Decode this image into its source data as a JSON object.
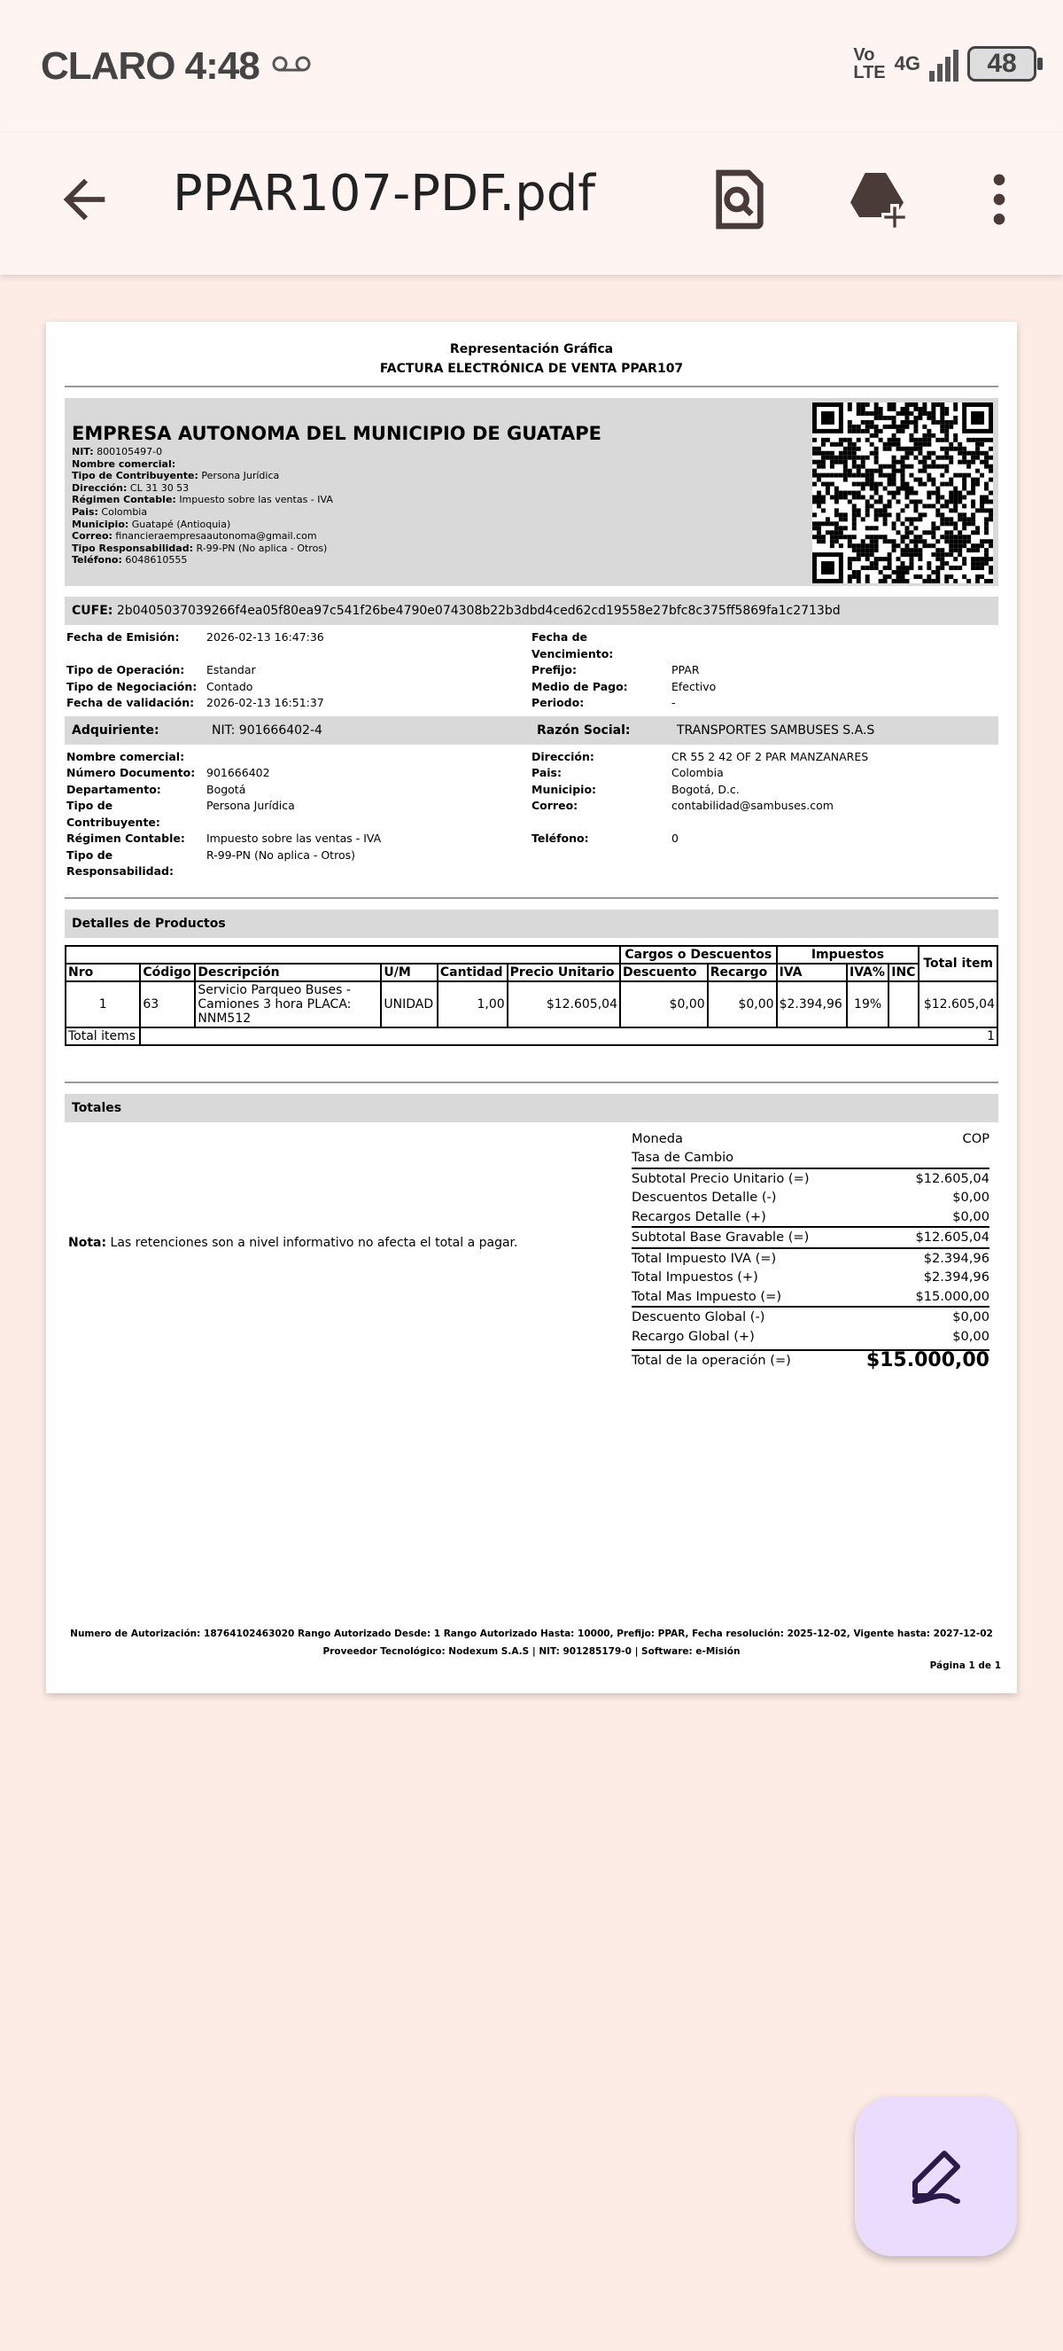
{
  "status": {
    "carrier": "CLARO",
    "time": "4:48",
    "volte": [
      "Vo",
      "LTE"
    ],
    "network": "4G",
    "battery": "48"
  },
  "appbar": {
    "title": "PPAR107-PDF.pdf",
    "icons": [
      "back-arrow-icon",
      "search-document-icon",
      "add-to-drive-icon",
      "more-vert-icon"
    ]
  },
  "doc": {
    "header": [
      "Representación Gráfica",
      "FACTURA ELECTRÓNICA DE VENTA PPAR107"
    ],
    "company": {
      "name": "EMPRESA AUTONOMA DEL MUNICIPIO DE GUATAPE",
      "fields": [
        {
          "k": "NIT:",
          "v": "800105497-0"
        },
        {
          "k": "Nombre comercial:",
          "v": ""
        },
        {
          "k": "Tipo de Contribuyente:",
          "v": "Persona Jurídica"
        },
        {
          "k": "Dirección:",
          "v": "CL 31 30 53"
        },
        {
          "k": "Régimen Contable:",
          "v": "Impuesto sobre las ventas - IVA"
        },
        {
          "k": "Pais:",
          "v": "Colombia"
        },
        {
          "k": "Municipio:",
          "v": "Guatapé (Antioquia)"
        },
        {
          "k": "Correo:",
          "v": "financieraempresaautonoma@gmail.com"
        },
        {
          "k": "Tipo Responsabilidad:",
          "v": "R-99-PN (No aplica - Otros)"
        },
        {
          "k": "Teléfono:",
          "v": "6048610555"
        }
      ]
    },
    "cufe": {
      "label": "CUFE:",
      "value": "2b0405037039266f4ea05f80ea97c541f26be4790e074308b22b3dbd4ced62cd19558e27bfc8c375ff5869fa1c2713bd"
    },
    "info": [
      [
        "Fecha de Emisión:",
        "2026-02-13 16:47:36",
        "Fecha de Vencimiento:",
        ""
      ],
      [
        "Tipo de Operación:",
        "Estandar",
        "Prefijo:",
        "PPAR"
      ],
      [
        "Tipo de Negociación:",
        "Contado",
        "Medio de Pago:",
        "Efectivo"
      ],
      [
        "Fecha de validación:",
        "2026-02-13 16:51:37",
        "Periodo:",
        "-"
      ]
    ],
    "adquiriente": {
      "label": "Adquiriente:",
      "nit": "NIT: 901666402-4",
      "rs_label": "Razón Social:",
      "rs": "TRANSPORTES SAMBUSES S.A.S"
    },
    "buyer": [
      [
        "Nombre comercial:",
        "",
        "Dirección:",
        "CR 55 2 42 OF 2 PAR MANZANARES"
      ],
      [
        "Número Documento:",
        "901666402",
        "Pais:",
        "Colombia"
      ],
      [
        "Departamento:",
        "Bogotá",
        "Municipio:",
        "Bogotá, D.c."
      ],
      [
        "Tipo de Contribuyente:",
        "Persona Jurídica",
        "Correo:",
        "contabilidad@sambuses.com"
      ],
      [
        "Régimen Contable:",
        "Impuesto sobre las ventas - IVA",
        "Teléfono:",
        "0"
      ],
      [
        "Tipo de Responsabilidad:",
        "R-99-PN (No aplica - Otros)",
        "",
        ""
      ]
    ],
    "products": {
      "title": "Detalles de Productos",
      "group_cargos": "Cargos o Descuentos",
      "group_impuestos": "Impuestos",
      "total_item": "Total item",
      "columns": [
        "Nro",
        "Código",
        "Descripción",
        "U/M",
        "Cantidad",
        "Precio Unitario",
        "Descuento",
        "Recargo",
        "IVA",
        "IVA%",
        "INC"
      ],
      "rows": [
        [
          "1",
          "63",
          "Servicio Parqueo Buses - Camiones 3 hora PLACA: NNM512",
          "UNIDAD",
          "1,00",
          "$12.605,04",
          "$0,00",
          "$0,00",
          "$2.394,96",
          "19%",
          "",
          "$12.605,04"
        ]
      ],
      "total_items_label": "Total items",
      "total_items": "1"
    },
    "totales": {
      "title": "Totales",
      "note_label": "Nota:",
      "note": "Las retenciones son a nivel informativo no afecta el total a pagar.",
      "rows": [
        {
          "k": "Moneda",
          "v": "COP"
        },
        {
          "k": "Tasa de Cambio",
          "v": ""
        },
        {
          "k": "Subtotal Precio Unitario (=)",
          "v": "$12.605,04",
          "sep": true
        },
        {
          "k": "Descuentos Detalle (-)",
          "v": "$0,00"
        },
        {
          "k": "Recargos Detalle (+)",
          "v": "$0,00"
        },
        {
          "k": "Subtotal Base Gravable (=)",
          "v": "$12.605,04",
          "sep": true
        },
        {
          "k": "Total Impuesto IVA (=)",
          "v": "$2.394,96",
          "sep": true
        },
        {
          "k": "Total Impuestos (+)",
          "v": "$2.394,96"
        },
        {
          "k": "Total Mas Impuesto (=)",
          "v": "$15.000,00"
        },
        {
          "k": "Descuento Global (-)",
          "v": "$0,00",
          "sep": true
        },
        {
          "k": "Recargo Global (+)",
          "v": "$0,00"
        },
        {
          "k": "Total de la operación (=)",
          "v": "$15.000,00",
          "sep": true,
          "big": true
        }
      ]
    },
    "footer": [
      "Numero de Autorización: 18764102463020 Rango Autorizado Desde: 1 Rango Autorizado Hasta: 10000, Prefijo: PPAR, Fecha resolución: 2025-12-02, Vigente hasta: 2027-12-02",
      "Proveedor Tecnológico: Nodexum S.A.S | NIT: 901285179-0 | Software: e-Misión"
    ],
    "page": "Página 1 de 1"
  },
  "fab": {
    "icon": "edit-pen-icon",
    "color": "#eadcfd"
  }
}
